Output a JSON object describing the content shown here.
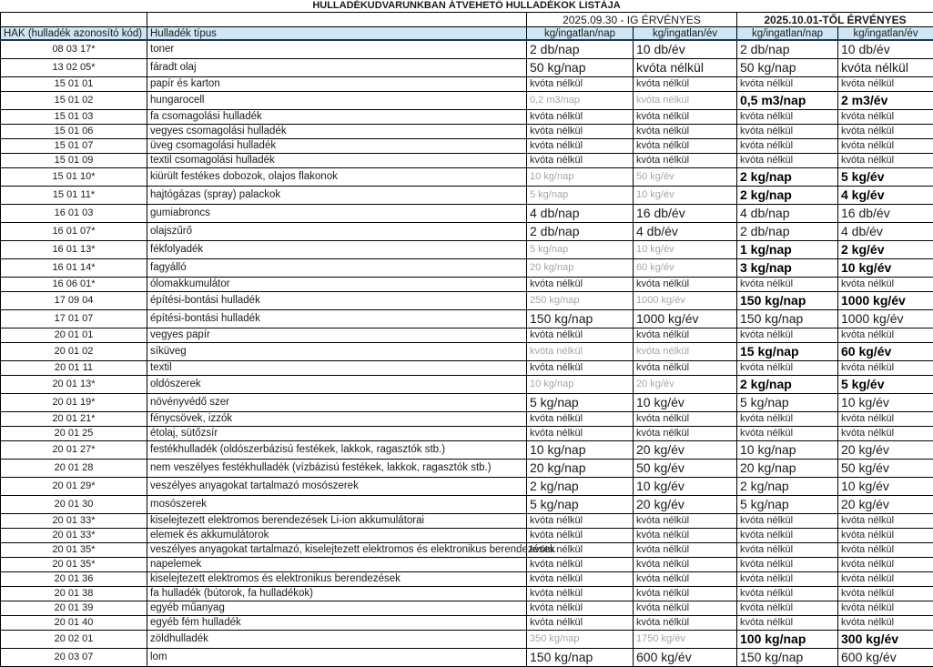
{
  "title": "HULLADÉKUDVARUNKBAN ÁTVEHETŐ HULLADÉKOK LISTÁJA",
  "header": {
    "period_old": "2025.09.30 - IG ÉRVÉNYES",
    "period_new": "2025.10.01-TŐL ÉRVÉNYES",
    "col_code": "HAK (hulladék azonosító kód)",
    "col_type": "Hulladék típus",
    "col_day": "kg/ingatlan/nap",
    "col_year": "kg/ingatlan/év"
  },
  "colors": {
    "header_fill": "#CDE7F3",
    "header_underline": "#1F3864",
    "gray_value": "#A6A6A6",
    "border": "#000000"
  },
  "rows": [
    {
      "code": "08 03 17*",
      "type": "toner",
      "values": [
        "2 db/nap",
        "10 db/év",
        "2 db/nap",
        "10 db/év"
      ],
      "styles": [
        "lg",
        "lg",
        "lg",
        "lg"
      ]
    },
    {
      "code": "13 02 05*",
      "type": "fáradt olaj",
      "values": [
        "50 kg/nap",
        "kvóta nélkül",
        "50 kg/nap",
        "kvóta nélkül"
      ],
      "styles": [
        "lg",
        "lg",
        "lg",
        "lg"
      ]
    },
    {
      "code": "15 01 01",
      "type": "papír és karton",
      "values": [
        "kvóta nélkül",
        "kvóta nélkül",
        "kvóta nélkül",
        "kvóta nélkül"
      ],
      "styles": [
        "sm",
        "sm",
        "sm",
        "sm"
      ]
    },
    {
      "code": "15 01 02",
      "type": "hungarocell",
      "values": [
        "0,2 m3/nap",
        "kvóta nélkül",
        "0,5 m3/nap",
        "2 m3/év"
      ],
      "styles": [
        "gray",
        "gray",
        "bold",
        "bold"
      ]
    },
    {
      "code": "15 01 03",
      "type": "fa csomagolási hulladék",
      "values": [
        "kvóta nélkül",
        "kvóta nélkül",
        "kvóta nélkül",
        "kvóta nélkül"
      ],
      "styles": [
        "sm",
        "sm",
        "sm",
        "sm"
      ]
    },
    {
      "code": "15 01 06",
      "type": "vegyes csomagolási hulladék",
      "values": [
        "kvóta nélkül",
        "kvóta nélkül",
        "kvóta nélkül",
        "kvóta nélkül"
      ],
      "styles": [
        "sm",
        "sm",
        "sm",
        "sm"
      ]
    },
    {
      "code": "15 01 07",
      "type": "üveg csomagolási hulladék",
      "values": [
        "kvóta nélkül",
        "kvóta nélkül",
        "kvóta nélkül",
        "kvóta nélkül"
      ],
      "styles": [
        "sm",
        "sm",
        "sm",
        "sm"
      ]
    },
    {
      "code": "15 01 09",
      "type": "textil csomagolási hulladék",
      "values": [
        "kvóta nélkül",
        "kvóta nélkül",
        "kvóta nélkül",
        "kvóta nélkül"
      ],
      "styles": [
        "sm",
        "sm",
        "sm",
        "sm"
      ]
    },
    {
      "code": "15 01 10*",
      "type": "kiürült festékes dobozok, olajos flakonok",
      "values": [
        "10 kg/nap",
        "50 kg/év",
        "2 kg/nap",
        "5 kg/év"
      ],
      "styles": [
        "gray",
        "gray",
        "bold",
        "bold"
      ]
    },
    {
      "code": "15 01 11*",
      "type": "hajtógázas (spray) palackok",
      "values": [
        "5 kg/nap",
        "10 kg/év",
        "2 kg/nap",
        "4 kg/év"
      ],
      "styles": [
        "gray",
        "gray",
        "bold",
        "bold"
      ]
    },
    {
      "code": "16 01 03",
      "type": "gumiabroncs",
      "values": [
        "4 db/nap",
        "16 db/év",
        "4 db/nap",
        "16 db/év"
      ],
      "styles": [
        "lg",
        "lg",
        "lg",
        "lg"
      ]
    },
    {
      "code": "16 01 07*",
      "type": "olajszűrő",
      "values": [
        "2 db/nap",
        "4 db/év",
        "2 db/nap",
        "4 db/év"
      ],
      "styles": [
        "lg",
        "lg",
        "lg",
        "lg"
      ]
    },
    {
      "code": "16 01 13*",
      "type": "fékfolyadék",
      "values": [
        "5 kg/nap",
        "10 kg/év",
        "1 kg/nap",
        "2 kg/év"
      ],
      "styles": [
        "gray",
        "gray",
        "bold",
        "bold"
      ]
    },
    {
      "code": "16 01 14*",
      "type": "fagyálló",
      "values": [
        "20 kg/nap",
        "60 kg/év",
        "3 kg/nap",
        "10 kg/év"
      ],
      "styles": [
        "gray",
        "gray",
        "bold",
        "bold"
      ]
    },
    {
      "code": "16 06 01*",
      "type": "ólomakkumulátor",
      "values": [
        "kvóta nélkül",
        "kvóta nélkül",
        "kvóta nélkül",
        "kvóta nélkül"
      ],
      "styles": [
        "sm",
        "sm",
        "sm",
        "sm"
      ]
    },
    {
      "code": "17 09 04",
      "type": "építési-bontási hulladék",
      "values": [
        "250 kg/nap",
        "1000 kg/év",
        "150 kg/nap",
        "1000 kg/év"
      ],
      "styles": [
        "gray",
        "gray",
        "bold",
        "bold"
      ]
    },
    {
      "code": "17 01 07",
      "type": "építési-bontási hulladék",
      "values": [
        "150 kg/nap",
        "1000 kg/év",
        "150 kg/nap",
        "1000 kg/év"
      ],
      "styles": [
        "lg",
        "lg",
        "lg",
        "lg"
      ]
    },
    {
      "code": "20 01 01",
      "type": "vegyes papír",
      "values": [
        "kvóta nélkül",
        "kvóta nélkül",
        "kvóta nélkül",
        "kvóta nélkül"
      ],
      "styles": [
        "sm",
        "sm",
        "sm",
        "sm"
      ]
    },
    {
      "code": "20 01 02",
      "type": "síküveg",
      "values": [
        "kvóta nélkül",
        "kvóta nélkül",
        "15 kg/nap",
        "60 kg/év"
      ],
      "styles": [
        "gray",
        "gray",
        "bold",
        "bold"
      ]
    },
    {
      "code": "20 01 11",
      "type": "textil",
      "values": [
        "kvóta nélkül",
        "kvóta nélkül",
        "kvóta nélkül",
        "kvóta nélkül"
      ],
      "styles": [
        "sm",
        "sm",
        "sm",
        "sm"
      ]
    },
    {
      "code": "20 01 13*",
      "type": "oldószerek",
      "values": [
        "10 kg/nap",
        "20 kg/év",
        "2 kg/nap",
        "5 kg/év"
      ],
      "styles": [
        "gray",
        "gray",
        "bold",
        "bold"
      ]
    },
    {
      "code": "20 01 19*",
      "type": "növényvédő szer",
      "values": [
        "5 kg/nap",
        "10 kg/év",
        "5 kg/nap",
        "10 kg/év"
      ],
      "styles": [
        "lg",
        "lg",
        "lg",
        "lg"
      ]
    },
    {
      "code": "20 01 21*",
      "type": "fénycsövek, izzók",
      "values": [
        "kvóta nélkül",
        "kvóta nélkül",
        "kvóta nélkül",
        "kvóta nélkül"
      ],
      "styles": [
        "sm",
        "sm",
        "sm",
        "sm"
      ]
    },
    {
      "code": "20 01 25",
      "type": "étolaj, sütőzsír",
      "values": [
        "kvóta nélkül",
        "kvóta nélkül",
        "kvóta nélkül",
        "kvóta nélkül"
      ],
      "styles": [
        "sm",
        "sm",
        "sm",
        "sm"
      ]
    },
    {
      "code": "20 01 27*",
      "type": "festékhulladék (oldószerbázisú festékek, lakkok, ragasztók stb.)",
      "values": [
        "10 kg/nap",
        "20 kg/év",
        "10 kg/nap",
        "20 kg/év"
      ],
      "styles": [
        "lg",
        "lg",
        "lg",
        "lg"
      ]
    },
    {
      "code": "20 01 28",
      "type": "nem veszélyes festékhulladék (vízbázisú festékek, lakkok, ragasztók stb.)",
      "values": [
        "20 kg/nap",
        "50 kg/év",
        "20 kg/nap",
        "50 kg/év"
      ],
      "styles": [
        "lg",
        "lg",
        "lg",
        "lg"
      ]
    },
    {
      "code": "20 01 29*",
      "type": "veszélyes anyagokat tartalmazó mosószerek",
      "values": [
        "2 kg/nap",
        "10 kg/év",
        "2 kg/nap",
        "10 kg/év"
      ],
      "styles": [
        "lg",
        "lg",
        "lg",
        "lg"
      ]
    },
    {
      "code": "20 01 30",
      "type": "mosószerek",
      "values": [
        "5 kg/nap",
        "20 kg/év",
        "5 kg/nap",
        "20 kg/év"
      ],
      "styles": [
        "lg",
        "lg",
        "lg",
        "lg"
      ]
    },
    {
      "code": "20 01 33*",
      "type": "kiselejtezett elektromos berendezések Li-ion akkumulátorai",
      "values": [
        "kvóta nélkül",
        "kvóta nélkül",
        "kvóta nélkül",
        "kvóta nélkül"
      ],
      "styles": [
        "sm",
        "sm",
        "sm",
        "sm"
      ]
    },
    {
      "code": "20 01 33*",
      "type": "elemek és akkumulátorok",
      "values": [
        "kvóta nélkül",
        "kvóta nélkül",
        "kvóta nélkül",
        "kvóta nélkül"
      ],
      "styles": [
        "sm",
        "sm",
        "sm",
        "sm"
      ]
    },
    {
      "code": "20 01 35*",
      "type": "veszélyes anyagokat tartalmazó, kiselejtezett elektromos és elektronikus berendezések",
      "values": [
        "kvóta nélkül",
        "kvóta nélkül",
        "kvóta nélkül",
        "kvóta nélkül"
      ],
      "styles": [
        "sm",
        "sm",
        "sm",
        "sm"
      ]
    },
    {
      "code": "20 01 35*",
      "type": "napelemek",
      "values": [
        "kvóta nélkül",
        "kvóta nélkül",
        "kvóta nélkül",
        "kvóta nélkül"
      ],
      "styles": [
        "sm",
        "sm",
        "sm",
        "sm"
      ]
    },
    {
      "code": "20 01 36",
      "type": "kiselejtezett elektromos és elektronikus berendezések",
      "values": [
        "kvóta nélkül",
        "kvóta nélkül",
        "kvóta nélkül",
        "kvóta nélkül"
      ],
      "styles": [
        "sm",
        "sm",
        "sm",
        "sm"
      ]
    },
    {
      "code": "20 01 38",
      "type": "fa hulladék (bútorok, fa hulladékok)",
      "values": [
        "kvóta nélkül",
        "kvóta nélkül",
        "kvóta nélkül",
        "kvóta nélkül"
      ],
      "styles": [
        "sm",
        "sm",
        "sm",
        "sm"
      ]
    },
    {
      "code": "20 01 39",
      "type": "egyéb műanyag",
      "values": [
        "kvóta nélkül",
        "kvóta nélkül",
        "kvóta nélkül",
        "kvóta nélkül"
      ],
      "styles": [
        "sm",
        "sm",
        "sm",
        "sm"
      ]
    },
    {
      "code": "20 01 40",
      "type": "egyéb fém hulladék",
      "values": [
        "kvóta nélkül",
        "kvóta nélkül",
        "kvóta nélkül",
        "kvóta nélkül"
      ],
      "styles": [
        "sm",
        "sm",
        "sm",
        "sm"
      ]
    },
    {
      "code": "20 02 01",
      "type": "zöldhulladék",
      "values": [
        "350 kg/nap",
        "1750 kg/év",
        "100 kg/nap",
        "300 kg/év"
      ],
      "styles": [
        "gray",
        "gray",
        "bold",
        "bold"
      ]
    },
    {
      "code": "20 03 07",
      "type": "lom",
      "values": [
        "150 kg/nap",
        "600 kg/év",
        "150 kg/nap",
        "600 kg/év"
      ],
      "styles": [
        "lg",
        "lg",
        "lg",
        "lg"
      ]
    }
  ]
}
